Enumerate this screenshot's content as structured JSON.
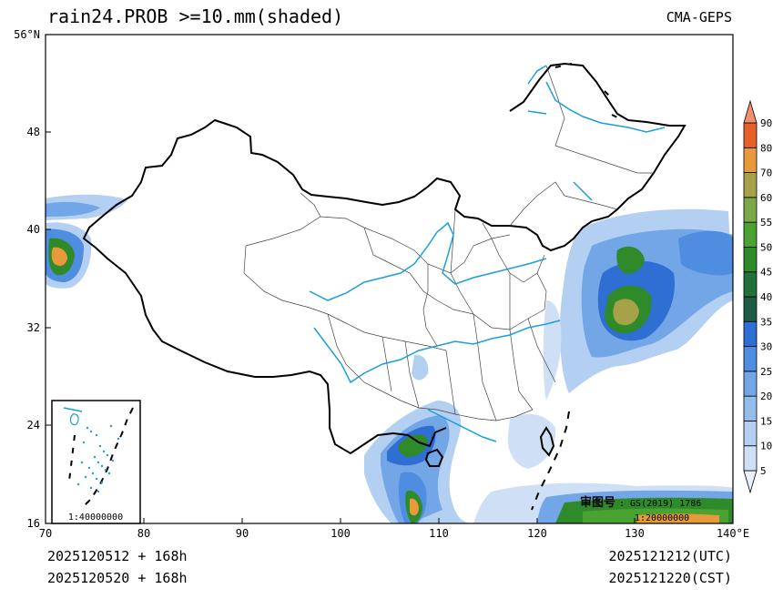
{
  "header": {
    "title": "rain24.PROB >=10.mm(shaded)",
    "model": "CMA-GEPS"
  },
  "footer": {
    "init_utc": "2025120512 + 168h",
    "init_cst": "2025120520 + 168h",
    "valid_utc": "2025121212(UTC)",
    "valid_cst": "2025121220(CST)"
  },
  "map": {
    "approval_label": "审图号",
    "approval_code": ": GS(2019) 1786",
    "scale_main": "1:20000000",
    "scale_inset": "1:40000000",
    "lat_labels": [
      "56°N",
      "48",
      "40",
      "32",
      "24",
      "16"
    ],
    "lon_labels": [
      "70",
      "80",
      "90",
      "100",
      "110",
      "120",
      "130",
      "140°E"
    ]
  },
  "colorbar": {
    "levels": [
      "5",
      "10",
      "15",
      "20",
      "25",
      "30",
      "35",
      "40",
      "45",
      "50",
      "55",
      "60",
      "70",
      "80",
      "90"
    ],
    "colors": [
      "#e8f0f9",
      "#cfe0f6",
      "#b3d0f2",
      "#95bdec",
      "#73a6e6",
      "#4e8ddf",
      "#2f6ed2",
      "#1e5a46",
      "#22703a",
      "#2f8a2a",
      "#4aa232",
      "#7aa84a",
      "#a6a24a",
      "#e89a3a",
      "#e7602a",
      "#f09070"
    ]
  },
  "colors": {
    "country": "#000000",
    "province": "#444444",
    "river": "#1a9fdc"
  }
}
